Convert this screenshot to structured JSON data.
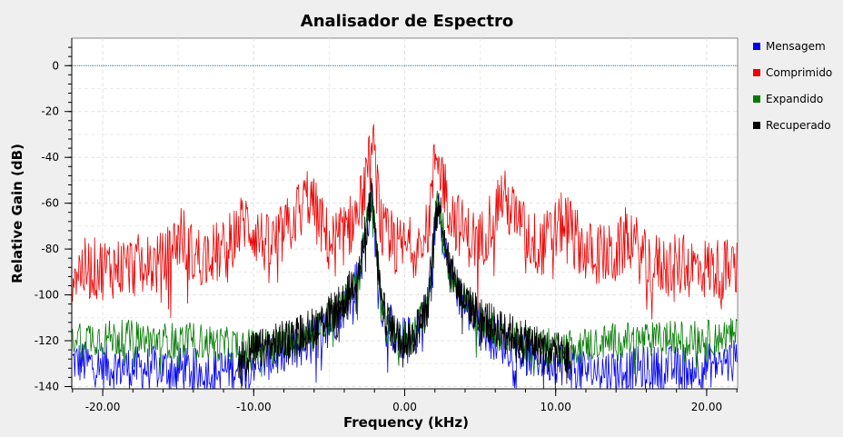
{
  "chart_data": {
    "type": "line",
    "title": "Analisador de Espectro",
    "xlabel": "Frequency (kHz)",
    "ylabel": "Relative Gain (dB)",
    "xlim": [
      -22.05,
      22.05
    ],
    "ylim": [
      -141,
      12
    ],
    "x_ticks": [
      -20,
      -10,
      0,
      10,
      20
    ],
    "x_tick_labels": [
      "-20.00",
      "-10.00",
      "0.00",
      "10.00",
      "20.00"
    ],
    "y_ticks": [
      0,
      -20,
      -40,
      -60,
      -80,
      -100,
      -120,
      -140
    ],
    "y_tick_labels": [
      "0",
      "-20",
      "-40",
      "-60",
      "-80",
      "-100",
      "-120",
      "-140"
    ],
    "grid": true,
    "legend_position": "right",
    "reference_level": 0,
    "series": [
      {
        "name": "Mensagem",
        "color": "#0000ee",
        "x": [
          -22,
          -20,
          -18,
          -16,
          -14,
          -12,
          -10,
          -8,
          -6,
          -5,
          -4,
          -3,
          -2.2,
          -1.5,
          -0.5,
          0.5,
          1.5,
          2.2,
          3,
          4,
          5,
          6,
          8,
          10,
          12,
          14,
          16,
          18,
          20,
          22
        ],
        "values": [
          -128,
          -130,
          -131,
          -131,
          -132,
          -132,
          -128,
          -125,
          -118,
          -112,
          -104,
          -90,
          -56,
          -105,
          -118,
          -118,
          -105,
          -56,
          -90,
          -104,
          -112,
          -118,
          -125,
          -128,
          -132,
          -132,
          -131,
          -131,
          -130,
          -128
        ]
      },
      {
        "name": "Comprimido",
        "color": "#ee0000",
        "x": [
          -22,
          -20,
          -18,
          -16,
          -14.8,
          -14,
          -12,
          -10.6,
          -9,
          -8,
          -6.4,
          -5,
          -4,
          -3,
          -2.1,
          -1.5,
          -0.5,
          0.5,
          1.5,
          2.1,
          3,
          4,
          5,
          6.4,
          8,
          9,
          10.6,
          12,
          14,
          14.8,
          16,
          18,
          20,
          22
        ],
        "values": [
          -88,
          -87,
          -86,
          -85,
          -72,
          -82,
          -80,
          -66,
          -78,
          -72,
          -55,
          -76,
          -72,
          -62,
          -34,
          -72,
          -78,
          -78,
          -72,
          -34,
          -62,
          -72,
          -76,
          -55,
          -72,
          -78,
          -66,
          -80,
          -82,
          -72,
          -85,
          -86,
          -87,
          -88
        ]
      },
      {
        "name": "Expandido",
        "color": "#007a00",
        "x": [
          -22,
          -20,
          -18,
          -16,
          -14,
          -12,
          -10,
          -8,
          -6,
          -5,
          -4,
          -3,
          -2.2,
          -1.5,
          -0.5,
          0.5,
          1.5,
          2.2,
          3,
          4,
          5,
          6,
          8,
          10,
          12,
          14,
          16,
          18,
          20,
          22
        ],
        "values": [
          -117,
          -118,
          -118,
          -119,
          -119,
          -121,
          -122,
          -120,
          -115,
          -110,
          -103,
          -90,
          -56,
          -105,
          -118,
          -118,
          -105,
          -56,
          -90,
          -103,
          -110,
          -115,
          -120,
          -122,
          -121,
          -119,
          -119,
          -118,
          -118,
          -117
        ]
      },
      {
        "name": "Recuperado",
        "color": "#000000",
        "x": [
          -11,
          -10,
          -8,
          -6,
          -5,
          -4,
          -3,
          -2.2,
          -1.5,
          -0.5,
          0.5,
          1.5,
          2.2,
          3,
          4,
          5,
          6,
          8,
          10,
          11
        ],
        "values": [
          -127,
          -124,
          -119,
          -113,
          -108,
          -102,
          -88,
          -56,
          -105,
          -118,
          -118,
          -105,
          -56,
          -88,
          -102,
          -108,
          -113,
          -119,
          -124,
          -127
        ]
      }
    ]
  }
}
